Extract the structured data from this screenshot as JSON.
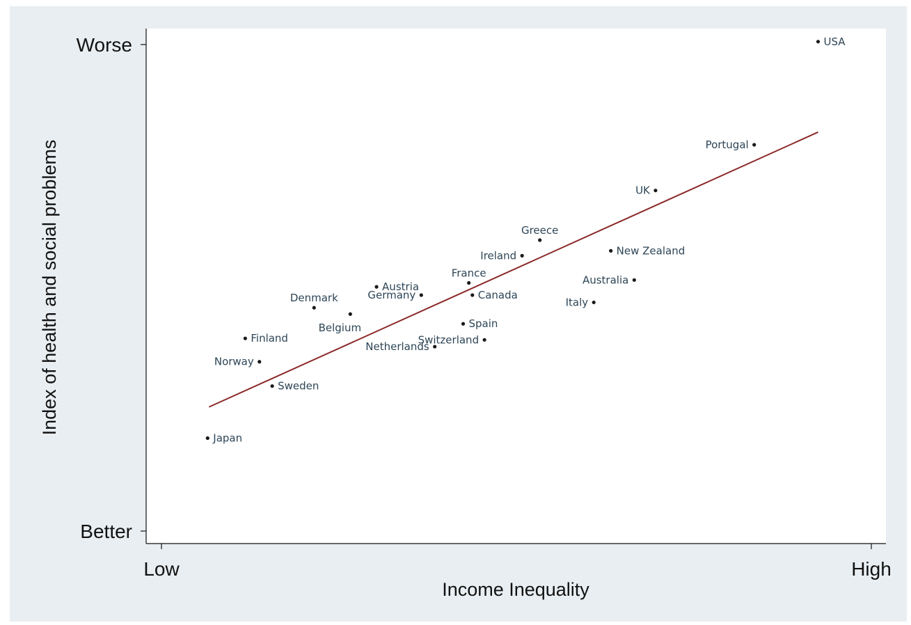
{
  "chart_data": {
    "type": "scatter",
    "title": "",
    "xlabel": "Income Inequality",
    "ylabel": "Index of health and social problems",
    "xlim": [
      0,
      100
    ],
    "ylim": [
      0,
      100
    ],
    "x_ticks": [
      {
        "value": 0,
        "label": "Low"
      },
      {
        "value": 100,
        "label": "High"
      }
    ],
    "y_ticks": [
      {
        "value": 100,
        "label": "Worse"
      },
      {
        "value": 0,
        "label": "Better"
      }
    ],
    "grid": false,
    "legend": "none",
    "point_color": "#1a1a1a",
    "label_color": "#2d4556",
    "trend_color": "#8b2a2a",
    "points": [
      {
        "name": "USA",
        "x": 92.5,
        "y": 100.6,
        "label_side": "right"
      },
      {
        "name": "Portugal",
        "x": 83.5,
        "y": 79.4,
        "label_side": "left"
      },
      {
        "name": "UK",
        "x": 69.6,
        "y": 70.0,
        "label_side": "left"
      },
      {
        "name": "Greece",
        "x": 53.3,
        "y": 59.8,
        "label_side": "above"
      },
      {
        "name": "New Zealand",
        "x": 63.3,
        "y": 57.6,
        "label_side": "right"
      },
      {
        "name": "Ireland",
        "x": 50.8,
        "y": 56.6,
        "label_side": "left"
      },
      {
        "name": "Austria",
        "x": 30.3,
        "y": 50.2,
        "label_side": "right"
      },
      {
        "name": "France",
        "x": 43.3,
        "y": 51.0,
        "label_side": "above"
      },
      {
        "name": "Australia",
        "x": 66.6,
        "y": 51.6,
        "label_side": "left"
      },
      {
        "name": "Germany",
        "x": 36.6,
        "y": 48.5,
        "label_side": "left"
      },
      {
        "name": "Canada",
        "x": 43.8,
        "y": 48.5,
        "label_side": "right"
      },
      {
        "name": "Italy",
        "x": 60.9,
        "y": 47.0,
        "label_side": "left"
      },
      {
        "name": "Denmark",
        "x": 21.5,
        "y": 45.9,
        "label_side": "above"
      },
      {
        "name": "Belgium",
        "x": 26.6,
        "y": 44.6,
        "label_side": "below"
      },
      {
        "name": "Spain",
        "x": 42.5,
        "y": 42.6,
        "label_side": "right"
      },
      {
        "name": "Finland",
        "x": 11.8,
        "y": 39.6,
        "label_side": "right"
      },
      {
        "name": "Switzerland",
        "x": 45.5,
        "y": 39.3,
        "label_side": "left"
      },
      {
        "name": "Netherlands",
        "x": 38.5,
        "y": 37.9,
        "label_side": "left"
      },
      {
        "name": "Norway",
        "x": 13.8,
        "y": 34.8,
        "label_side": "left"
      },
      {
        "name": "Sweden",
        "x": 15.6,
        "y": 29.8,
        "label_side": "right"
      },
      {
        "name": "Japan",
        "x": 6.5,
        "y": 19.1,
        "label_side": "right"
      }
    ],
    "trend_line": {
      "x": [
        6.7,
        92.5
      ],
      "y": [
        25.5,
        82.0
      ]
    }
  }
}
